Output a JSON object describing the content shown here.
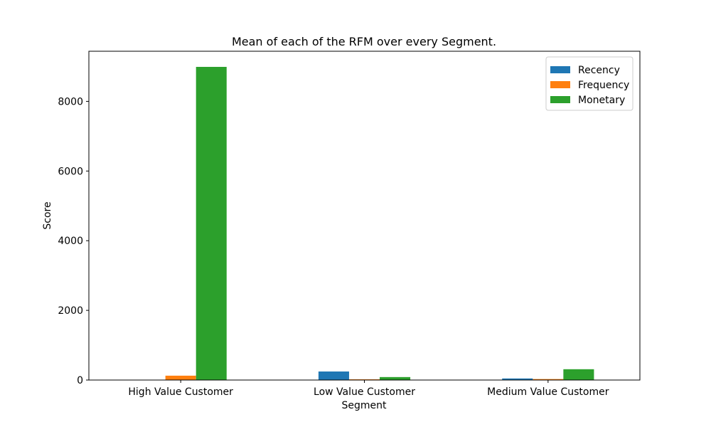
{
  "chart_data": {
    "type": "bar",
    "title": "Mean of each of the RFM over every Segment.",
    "xlabel": "Segment",
    "ylabel": "Score",
    "categories": [
      "High Value Customer",
      "Low Value Customer",
      "Medium Value Customer"
    ],
    "series": [
      {
        "name": "Recency",
        "color": "#1f77b4",
        "values": [
          8,
          245,
          45
        ]
      },
      {
        "name": "Frequency",
        "color": "#ff7f0e",
        "values": [
          125,
          20,
          28
        ]
      },
      {
        "name": "Monetary",
        "color": "#2ca02c",
        "values": [
          8990,
          85,
          310
        ]
      }
    ],
    "ylim": [
      0,
      9439
    ],
    "yticks": [
      0,
      2000,
      4000,
      6000,
      8000
    ],
    "grid": false,
    "legend": "top-right"
  }
}
